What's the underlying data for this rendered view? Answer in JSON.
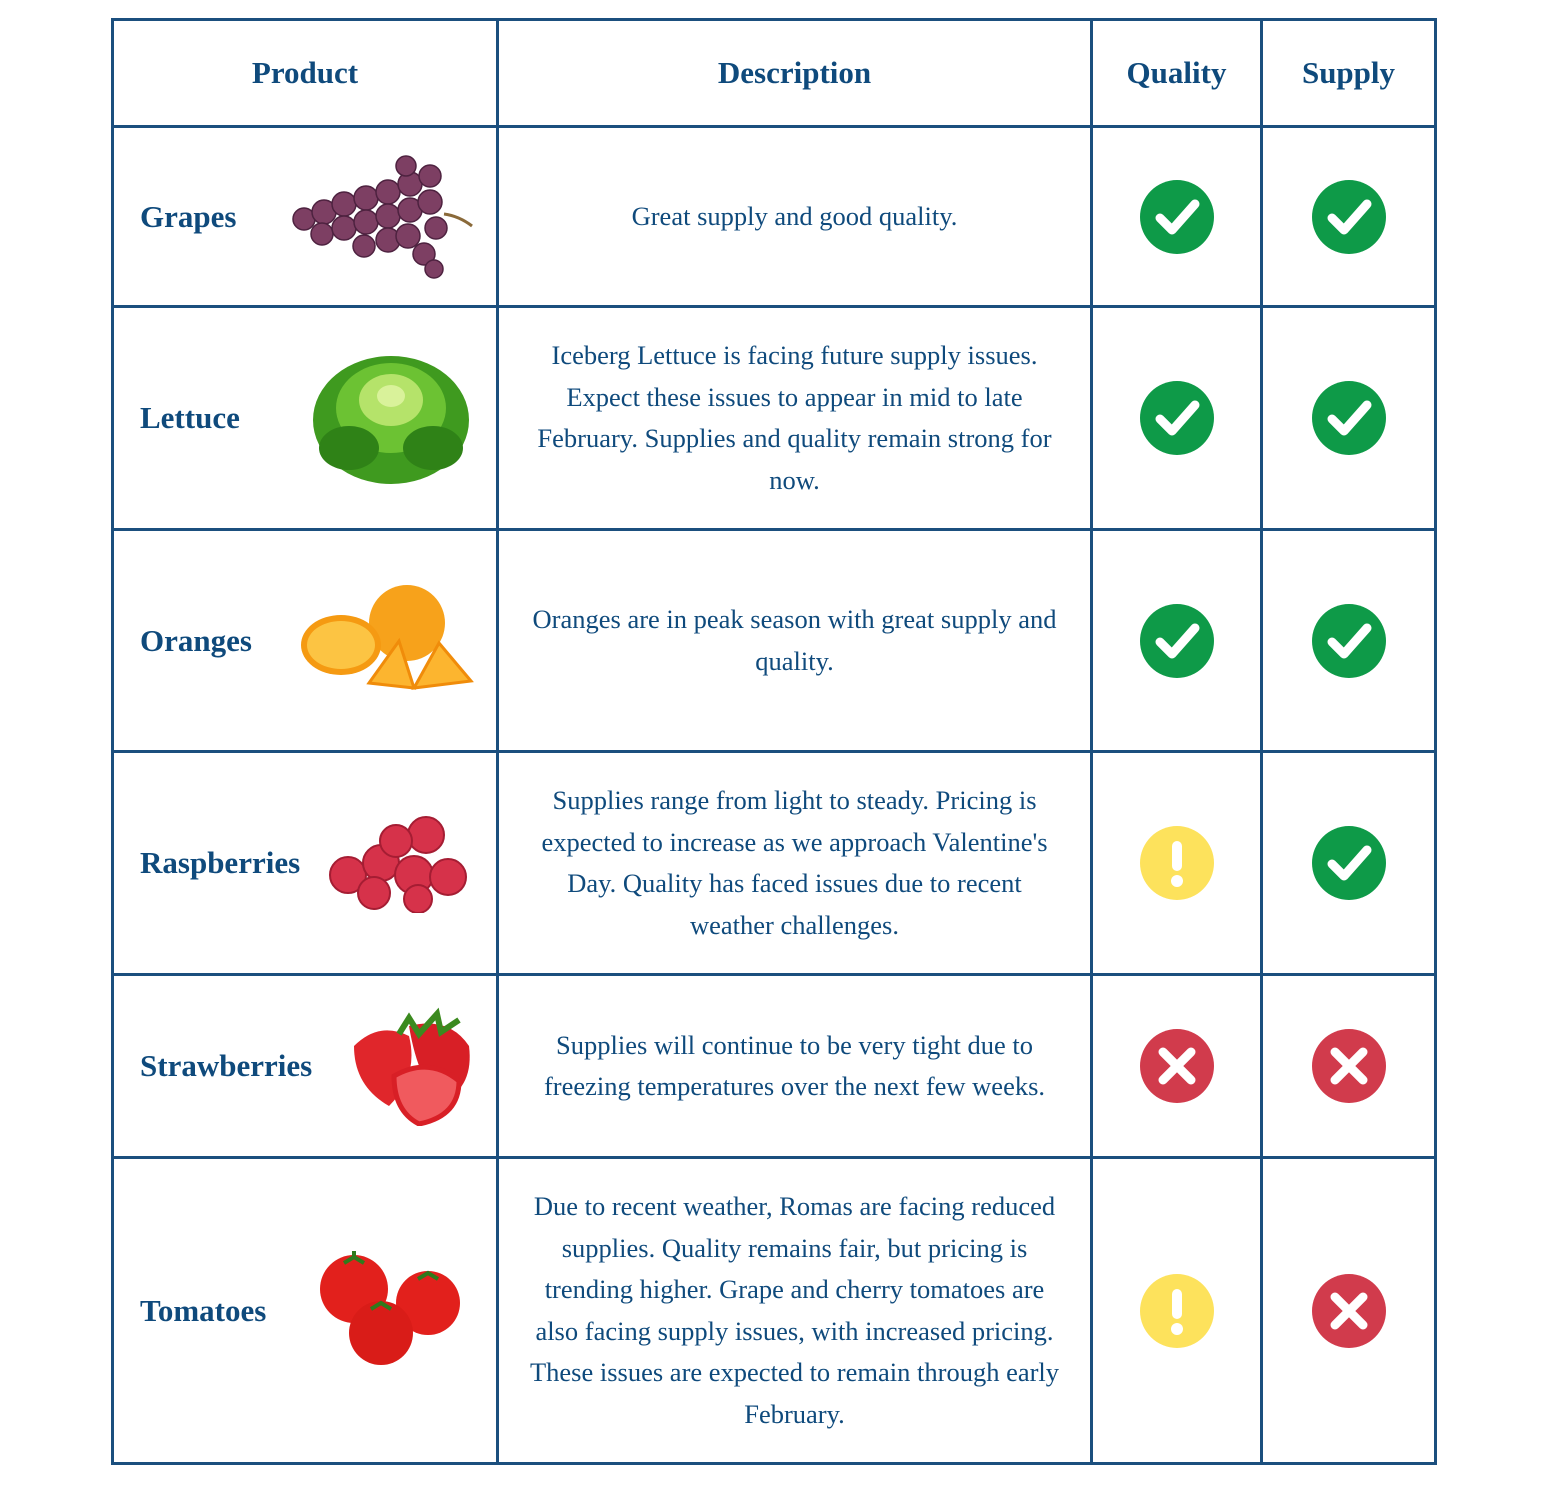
{
  "table": {
    "header": [
      "Product",
      "Description",
      "Quality",
      "Supply"
    ],
    "rows": [
      {
        "product": "Grapes",
        "description": "Great supply and good quality."
      },
      {
        "product": "Lettuce",
        "description": "Iceberg Lettuce is facing future supply issues. Expect these issues to appear in mid to late February. Supplies and quality remain strong for now."
      },
      {
        "product": "Oranges",
        "description": "Oranges are in peak season with great supply and quality."
      },
      {
        "product": "Raspberries",
        "description": "Supplies range from light to steady. Pricing is expected to increase as we approach Valentine's Day. Quality has faced issues due to recent weather challenges."
      },
      {
        "product": "Strawberries",
        "description": "Supplies will continue to be very tight due to freezing temperatures over the next few weeks."
      },
      {
        "product": "Tomatoes",
        "description": "Due to recent weather, Romas are facing reduced supplies. Quality remains fair, but pricing is trending higher. Grape and cherry tomatoes are also facing supply issues, with increased pricing. These issues are expected to remain through early February."
      }
    ]
  }
}
